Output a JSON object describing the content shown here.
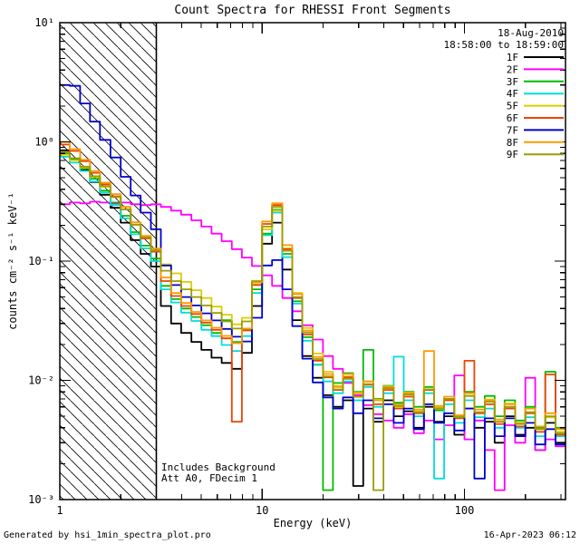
{
  "title": "Count Spectra for RHESSI Front Segments",
  "annotations": {
    "date": "18-Aug-2010",
    "time_range": "18:58:00 to 18:59:00",
    "background_note": "Includes Background",
    "att_note": "Att A0, FDecim 1"
  },
  "footer": {
    "generated_by": "Generated by hsi_1min_spectra_plot.pro",
    "timestamp": "16-Apr-2023 06:12"
  },
  "chart_data": {
    "type": "line",
    "subtype": "histogram-step",
    "title": "Count Spectra for RHESSI Front Segments",
    "xlabel": "Energy (keV)",
    "ylabel": "counts cm⁻² s⁻¹ keV⁻¹",
    "xscale": "log",
    "yscale": "log",
    "xlim": [
      1,
      316
    ],
    "ylim": [
      0.001,
      10
    ],
    "x_ticks": [
      1,
      10,
      100
    ],
    "x_tick_labels": [
      "1",
      "10",
      "100"
    ],
    "y_ticks": [
      0.001,
      0.01,
      0.1,
      1,
      10
    ],
    "y_tick_labels": [
      "10⁻³",
      "10⁻²",
      "10⁻¹",
      "10⁰",
      "10¹"
    ],
    "grid": false,
    "legend_position": "top-right-inside",
    "hatched_region": {
      "xmin": 1,
      "xmax": 3,
      "style": "diagonal-hatch"
    },
    "x_bin_edges": [
      1.0,
      1.12,
      1.26,
      1.41,
      1.58,
      1.78,
      2.0,
      2.24,
      2.51,
      2.82,
      3.16,
      3.55,
      3.98,
      4.47,
      5.01,
      5.62,
      6.31,
      7.08,
      7.94,
      8.91,
      10.0,
      11.2,
      12.6,
      14.1,
      15.8,
      17.8,
      20.0,
      22.4,
      25.1,
      28.2,
      31.6,
      35.5,
      39.8,
      44.7,
      50.1,
      56.2,
      63.1,
      70.8,
      79.4,
      89.1,
      100,
      112,
      126,
      141,
      158,
      178,
      200,
      224,
      251,
      282,
      316
    ],
    "series": [
      {
        "name": "1F",
        "color": "#000000",
        "values": [
          0.85,
          0.72,
          0.58,
          0.46,
          0.36,
          0.28,
          0.21,
          0.15,
          0.115,
          0.09,
          0.042,
          0.03,
          0.025,
          0.021,
          0.018,
          0.0155,
          0.014,
          0.0125,
          0.017,
          0.042,
          0.14,
          0.21,
          0.085,
          0.032,
          0.016,
          0.0105,
          0.0075,
          0.006,
          0.0068,
          0.0013,
          0.0058,
          0.0045,
          0.0068,
          0.005,
          0.0055,
          0.004,
          0.006,
          0.0045,
          0.005,
          0.0035,
          0.0058,
          0.004,
          0.0045,
          0.003,
          0.005,
          0.0035,
          0.004,
          0.0026,
          0.0044,
          0.003
        ]
      },
      {
        "name": "2F",
        "color": "#ff00ff",
        "values": [
          0.3,
          0.31,
          0.305,
          0.315,
          0.31,
          0.305,
          0.31,
          0.3,
          0.295,
          0.3,
          0.285,
          0.265,
          0.245,
          0.22,
          0.195,
          0.17,
          0.147,
          0.126,
          0.107,
          0.091,
          0.076,
          0.062,
          0.049,
          0.038,
          0.029,
          0.022,
          0.016,
          0.0125,
          0.0095,
          0.0075,
          0.0062,
          0.0052,
          0.0046,
          0.004,
          0.0052,
          0.0036,
          0.0046,
          0.0032,
          0.0042,
          0.011,
          0.0032,
          0.0046,
          0.0026,
          0.0012,
          0.0042,
          0.003,
          0.0105,
          0.0026,
          0.0032,
          0.0028
        ]
      },
      {
        "name": "3F",
        "color": "#00bb00",
        "values": [
          0.8,
          0.71,
          0.6,
          0.49,
          0.39,
          0.31,
          0.24,
          0.175,
          0.135,
          0.105,
          0.062,
          0.048,
          0.04,
          0.034,
          0.029,
          0.025,
          0.032,
          0.021,
          0.027,
          0.058,
          0.17,
          0.27,
          0.115,
          0.046,
          0.023,
          0.0135,
          0.0012,
          0.0095,
          0.0115,
          0.008,
          0.018,
          0.007,
          0.009,
          0.0065,
          0.008,
          0.006,
          0.0088,
          0.0056,
          0.007,
          0.005,
          0.008,
          0.006,
          0.0074,
          0.005,
          0.0068,
          0.0046,
          0.006,
          0.004,
          0.0118,
          0.004
        ]
      },
      {
        "name": "4F",
        "color": "#00dddd",
        "values": [
          0.75,
          0.67,
          0.57,
          0.465,
          0.375,
          0.295,
          0.228,
          0.168,
          0.128,
          0.1,
          0.058,
          0.045,
          0.037,
          0.0315,
          0.0265,
          0.0235,
          0.0198,
          0.0176,
          0.0235,
          0.054,
          0.165,
          0.255,
          0.108,
          0.044,
          0.0215,
          0.0136,
          0.0098,
          0.0078,
          0.0098,
          0.0068,
          0.0088,
          0.006,
          0.0078,
          0.0158,
          0.0068,
          0.005,
          0.0078,
          0.0015,
          0.0063,
          0.0044,
          0.0068,
          0.0049,
          0.0058,
          0.004,
          0.0058,
          0.004,
          0.0049,
          0.0034,
          0.0049,
          0.0034
        ]
      },
      {
        "name": "5F",
        "color": "#ddcc00",
        "values": [
          0.78,
          0.7,
          0.61,
          0.51,
          0.42,
          0.345,
          0.272,
          0.202,
          0.156,
          0.121,
          0.094,
          0.079,
          0.067,
          0.057,
          0.049,
          0.0415,
          0.0355,
          0.0295,
          0.0335,
          0.064,
          0.185,
          0.265,
          0.128,
          0.054,
          0.0275,
          0.0168,
          0.0118,
          0.009,
          0.0108,
          0.0079,
          0.0098,
          0.0069,
          0.0089,
          0.006,
          0.0079,
          0.0055,
          0.0084,
          0.0059,
          0.0069,
          0.0049,
          0.0074,
          0.0054,
          0.0069,
          0.0045,
          0.0064,
          0.0044,
          0.0054,
          0.0039,
          0.0049,
          0.0037
        ]
      },
      {
        "name": "6F",
        "color": "#ee4400",
        "values": [
          0.95,
          0.84,
          0.69,
          0.55,
          0.44,
          0.35,
          0.272,
          0.202,
          0.155,
          0.12,
          0.068,
          0.051,
          0.042,
          0.036,
          0.0305,
          0.0265,
          0.0225,
          0.0045,
          0.0262,
          0.063,
          0.205,
          0.295,
          0.126,
          0.049,
          0.0242,
          0.0146,
          0.0106,
          0.0083,
          0.0106,
          0.0073,
          0.0092,
          0.0063,
          0.0083,
          0.0058,
          0.0073,
          0.0053,
          0.0083,
          0.0058,
          0.0068,
          0.0048,
          0.0146,
          0.0053,
          0.0063,
          0.0043,
          0.0058,
          0.0041,
          0.0053,
          0.0037,
          0.0112,
          0.0035
        ]
      },
      {
        "name": "7F",
        "color": "#0000cc",
        "values": [
          3.0,
          2.95,
          2.1,
          1.48,
          1.04,
          0.74,
          0.51,
          0.355,
          0.255,
          0.185,
          0.092,
          0.063,
          0.05,
          0.0425,
          0.0365,
          0.0318,
          0.027,
          0.0232,
          0.0212,
          0.0335,
          0.092,
          0.102,
          0.058,
          0.0285,
          0.0152,
          0.0096,
          0.0072,
          0.0058,
          0.0072,
          0.0053,
          0.0068,
          0.0048,
          0.0063,
          0.0044,
          0.0058,
          0.0039,
          0.0063,
          0.0044,
          0.0053,
          0.0038,
          0.0058,
          0.0015,
          0.0048,
          0.0034,
          0.0048,
          0.0034,
          0.0044,
          0.0029,
          0.0039,
          0.0029
        ]
      },
      {
        "name": "8F",
        "color": "#ff9900",
        "values": [
          1.0,
          0.87,
          0.71,
          0.57,
          0.455,
          0.365,
          0.285,
          0.212,
          0.163,
          0.127,
          0.073,
          0.054,
          0.0445,
          0.0375,
          0.0318,
          0.0276,
          0.0236,
          0.0205,
          0.0272,
          0.0665,
          0.215,
          0.305,
          0.136,
          0.053,
          0.0262,
          0.0157,
          0.0113,
          0.0088,
          0.0113,
          0.0078,
          0.0098,
          0.0068,
          0.0088,
          0.0063,
          0.0078,
          0.0057,
          0.0176,
          0.0061,
          0.0073,
          0.0051,
          0.0078,
          0.0057,
          0.0068,
          0.0047,
          0.0063,
          0.0044,
          0.0058,
          0.0041,
          0.0053,
          0.0039
        ]
      },
      {
        "name": "9F",
        "color": "#9c9c00",
        "values": [
          0.82,
          0.73,
          0.62,
          0.515,
          0.425,
          0.345,
          0.272,
          0.203,
          0.158,
          0.123,
          0.083,
          0.068,
          0.058,
          0.05,
          0.0425,
          0.0368,
          0.0312,
          0.0272,
          0.0312,
          0.068,
          0.195,
          0.285,
          0.122,
          0.05,
          0.0252,
          0.0151,
          0.0108,
          0.0084,
          0.0103,
          0.0073,
          0.0093,
          0.0012,
          0.0086,
          0.0061,
          0.0076,
          0.0054,
          0.0084,
          0.0058,
          0.007,
          0.0049,
          0.0074,
          0.0054,
          0.0066,
          0.0045,
          0.006,
          0.0043,
          0.0054,
          0.0039,
          0.005,
          0.0036
        ]
      }
    ]
  }
}
